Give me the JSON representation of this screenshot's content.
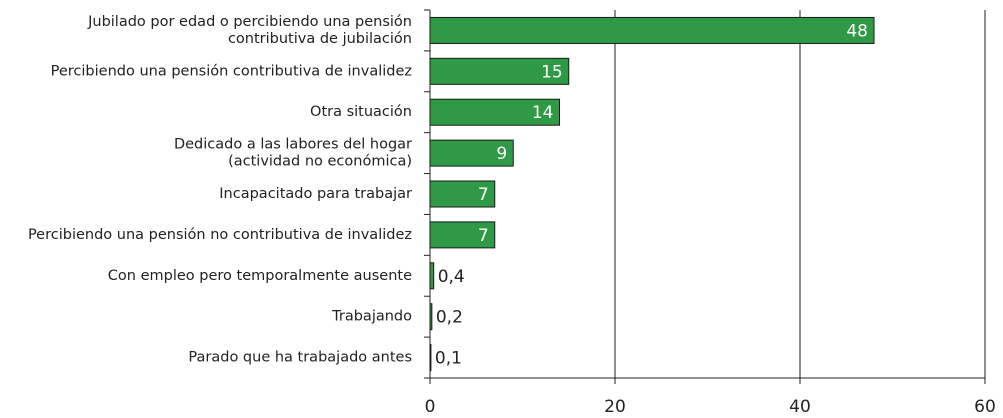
{
  "chart_data": {
    "type": "barh",
    "categories": [
      "Jubilado por edad o percibiendo una pensión\ncontributiva de jubilación",
      "Percibiendo una pensión contributiva de invalidez",
      "Otra situación",
      "Dedicado a las labores del hogar\n(actividad no económica)",
      "Incapacitado para trabajar",
      "Percibiendo una pensión no contributiva de invalidez",
      "Con empleo pero temporalmente ausente",
      "Trabajando",
      "Parado que ha trabajado antes"
    ],
    "values": [
      48,
      15,
      14,
      9,
      7,
      7,
      0.4,
      0.2,
      0.1
    ],
    "value_labels": [
      "48",
      "15",
      "14",
      "9",
      "7",
      "7",
      "0,4",
      "0,2",
      "0,1"
    ],
    "color": "#2f9a45",
    "xlim": [
      0,
      60
    ],
    "xticks": [
      0,
      20,
      40,
      60
    ],
    "grid": true
  }
}
